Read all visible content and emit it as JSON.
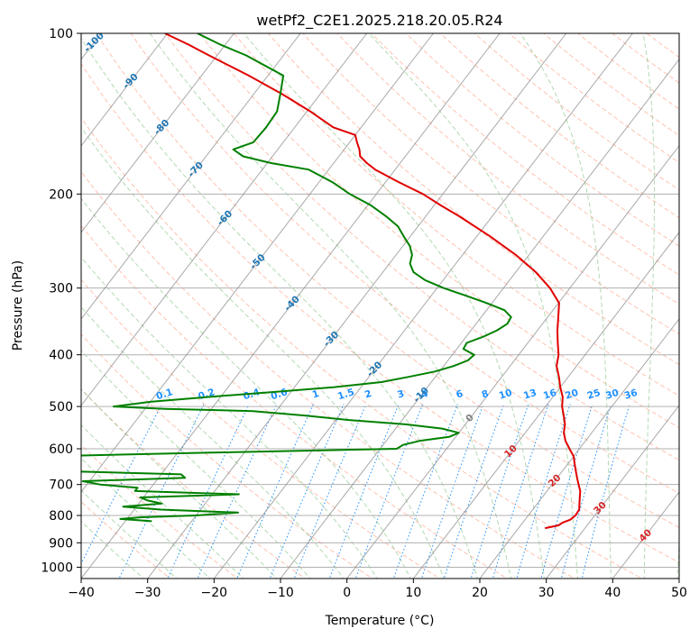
{
  "chart_data": {
    "type": "line",
    "title": "wetPf2_C2E1.2025.218.20.05.R24",
    "xlabel": "Temperature (°C)",
    "ylabel": "Pressure (hPa)",
    "xlim": [
      -40,
      50
    ],
    "ylim": [
      1050,
      100
    ],
    "y_scale": "log",
    "x_ticks": [
      -40,
      -30,
      -20,
      -10,
      0,
      10,
      20,
      30,
      40,
      50
    ],
    "x_tick_labels": [
      "−40",
      "−30",
      "−20",
      "−10",
      "0",
      "10",
      "20",
      "30",
      "40",
      "50"
    ],
    "y_ticks": [
      100,
      200,
      300,
      400,
      500,
      600,
      700,
      800,
      900,
      1000
    ],
    "y_tick_labels": [
      "100",
      "200",
      "300",
      "400",
      "500",
      "600",
      "700",
      "800",
      "900",
      "1000"
    ],
    "grid": true,
    "colors": {
      "temperature": "#e00000",
      "dewpoint": "#008000",
      "dry_adiabat": "#ff9a7a",
      "moist_adiabat": "#7fbf7f",
      "mixing_ratio": "#1e90ff",
      "isotherm": "#8c8c8c",
      "isotherm_label_neg": "#1f77b4",
      "isotherm_label_pos": "#d62728",
      "isotherm_label_zero": "#808080"
    },
    "series": [
      {
        "id": "temperature",
        "p": [
          845,
          835,
          825,
          815,
          800,
          780,
          750,
          720,
          700,
          680,
          660,
          640,
          620,
          600,
          580,
          560,
          540,
          520,
          500,
          480,
          460,
          440,
          420,
          400,
          380,
          360,
          340,
          320,
          300,
          280,
          260,
          240,
          220,
          210,
          200,
          190,
          180,
          175,
          170,
          165,
          160,
          155,
          150,
          140,
          130,
          120,
          110,
          105,
          100
        ],
        "t": [
          24.0,
          25.7,
          26.0,
          26.8,
          27.1,
          27.0,
          26.0,
          25.0,
          24.0,
          23.0,
          22.0,
          21.0,
          20.0,
          18.5,
          17.0,
          15.8,
          15.0,
          13.8,
          12.5,
          11.5,
          10.0,
          8.6,
          7.0,
          6.0,
          4.5,
          3.0,
          1.6,
          0.1,
          -3.0,
          -7.0,
          -12.0,
          -18.0,
          -25.0,
          -29.0,
          -33.0,
          -38.0,
          -43.0,
          -45.0,
          -46.8,
          -47.7,
          -48.9,
          -50.0,
          -54.2,
          -59.5,
          -65.7,
          -72.9,
          -81.2,
          -85.5,
          -90.4
        ]
      },
      {
        "id": "dewpoint",
        "p": [
          820,
          812,
          806,
          800,
          790,
          780,
          770,
          760,
          750,
          740,
          730,
          720,
          710,
          700,
          690,
          680,
          670,
          660,
          650,
          640,
          630,
          620,
          610,
          600,
          590,
          580,
          570,
          560,
          550,
          540,
          530,
          520,
          510,
          505,
          500,
          490,
          480,
          470,
          460,
          450,
          440,
          430,
          420,
          410,
          400,
          390,
          380,
          370,
          360,
          350,
          340,
          330,
          320,
          310,
          300,
          290,
          280,
          270,
          260,
          250,
          240,
          230,
          220,
          210,
          200,
          190,
          180,
          175,
          170,
          165,
          160,
          150,
          140,
          130,
          120,
          110,
          105,
          100
        ],
        "t": [
          -36.0,
          -41.0,
          -38.0,
          -30.0,
          -24.0,
          -36.0,
          -42.0,
          -36.5,
          -39.0,
          -40.5,
          -26.0,
          -42.0,
          -42.0,
          -48.0,
          -51.0,
          -36.0,
          -37.0,
          -57.0,
          -57.0,
          -60.0,
          -60.0,
          -60.0,
          -35.0,
          -7.5,
          -7.0,
          -5.0,
          -1.0,
          0.0,
          -3.0,
          -9.0,
          -18.0,
          -25.0,
          -33.5,
          -47.0,
          -55.0,
          -50.0,
          -42.0,
          -33.0,
          -24.0,
          -17.5,
          -14.0,
          -10.7,
          -8.5,
          -7.0,
          -6.7,
          -9.0,
          -9.2,
          -7.4,
          -6.1,
          -5.3,
          -5.5,
          -7.3,
          -10.8,
          -14.8,
          -19.0,
          -22.7,
          -25.4,
          -26.9,
          -27.6,
          -29.0,
          -31.0,
          -33.0,
          -36.0,
          -39.5,
          -44.0,
          -48.0,
          -53.0,
          -59.4,
          -64.4,
          -66.7,
          -64.5,
          -64.3,
          -64.5,
          -66.0,
          -67.7,
          -75.6,
          -80.7,
          -85.5
        ]
      }
    ],
    "isotherm_labels": [
      {
        "text": "-100",
        "t": -100,
        "p": 104
      },
      {
        "text": "-90",
        "t": -90,
        "p": 123
      },
      {
        "text": "-80",
        "t": -80,
        "p": 150
      },
      {
        "text": "-70",
        "t": -70,
        "p": 180
      },
      {
        "text": "-60",
        "t": -60,
        "p": 222
      },
      {
        "text": "-50",
        "t": -50,
        "p": 268
      },
      {
        "text": "-40",
        "t": -40,
        "p": 321
      },
      {
        "text": "-30",
        "t": -30,
        "p": 374
      },
      {
        "text": "-20",
        "t": -20,
        "p": 426
      },
      {
        "text": "-10",
        "t": -10,
        "p": 476
      },
      {
        "text": "0",
        "t": 0,
        "p": 526
      },
      {
        "text": "10",
        "t": 10,
        "p": 607
      },
      {
        "text": "20",
        "t": 20,
        "p": 689
      },
      {
        "text": "30",
        "t": 30,
        "p": 775
      },
      {
        "text": "40",
        "t": 40,
        "p": 873
      }
    ],
    "mixing_ratio_labels": [
      "0.1",
      "0.2",
      "0.4",
      "0.6",
      "1",
      "1.5",
      "2",
      "3",
      "4",
      "6",
      "8",
      "10",
      "13",
      "16",
      "20",
      "25",
      "30",
      "36"
    ],
    "mixing_ratio_label_pressure": 480
  }
}
